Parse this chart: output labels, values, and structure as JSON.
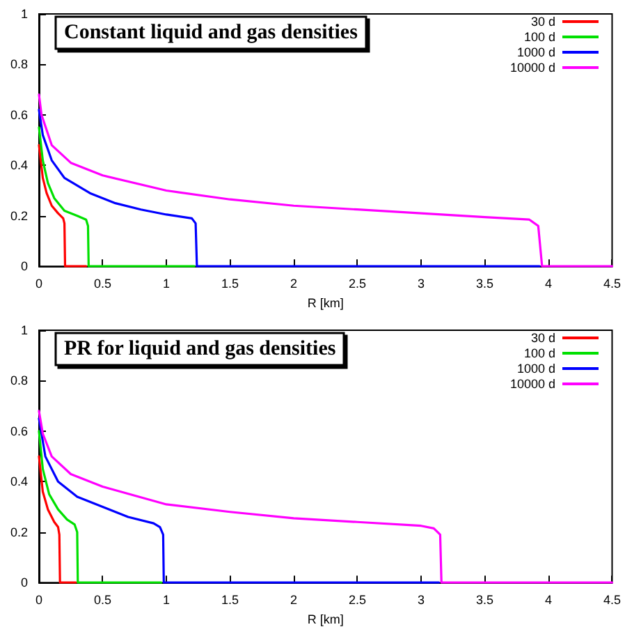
{
  "chart_data": [
    {
      "type": "line",
      "title": "Constant liquid and gas densities",
      "xlabel": "R [km]",
      "xlim": [
        0,
        4.5
      ],
      "xticks": [
        0,
        0.5,
        1,
        1.5,
        2,
        2.5,
        3,
        3.5,
        4,
        4.5
      ],
      "ylim": [
        0,
        1
      ],
      "yticks": [
        0,
        0.2,
        0.4,
        0.6,
        0.8,
        1
      ],
      "grid": false,
      "legend": "top right",
      "marker": "none",
      "line_style": "solid",
      "series": [
        {
          "name": "30 d",
          "color": "#ff0000",
          "x": [
            0,
            0.03,
            0.06,
            0.1,
            0.15,
            0.19,
            0.2,
            0.205,
            0.37
          ],
          "values": [
            0.48,
            0.35,
            0.29,
            0.24,
            0.21,
            0.19,
            0.17,
            0,
            0
          ]
        },
        {
          "name": "100 d",
          "color": "#00e000",
          "x": [
            0,
            0.03,
            0.07,
            0.12,
            0.2,
            0.3,
            0.37,
            0.385,
            0.39,
            1.22
          ],
          "values": [
            0.55,
            0.42,
            0.33,
            0.27,
            0.22,
            0.2,
            0.185,
            0.16,
            0,
            0
          ]
        },
        {
          "name": "1000 d",
          "color": "#0000ff",
          "x": [
            0,
            0.03,
            0.1,
            0.2,
            0.4,
            0.6,
            0.8,
            1,
            1.2,
            1.23,
            1.24,
            3.93
          ],
          "values": [
            0.62,
            0.52,
            0.42,
            0.35,
            0.29,
            0.25,
            0.225,
            0.205,
            0.19,
            0.17,
            0,
            0
          ]
        },
        {
          "name": "10000 d",
          "color": "#ff00ff",
          "x": [
            0,
            0.02,
            0.1,
            0.25,
            0.5,
            1,
            1.5,
            2,
            2.5,
            3,
            3.5,
            3.85,
            3.92,
            3.95,
            4.5
          ],
          "values": [
            0.68,
            0.6,
            0.48,
            0.41,
            0.36,
            0.3,
            0.265,
            0.24,
            0.225,
            0.21,
            0.195,
            0.185,
            0.16,
            0,
            0
          ]
        }
      ]
    },
    {
      "type": "line",
      "title": "PR for liquid and gas densities",
      "xlabel": "R [km]",
      "xlim": [
        0,
        4.5
      ],
      "xticks": [
        0,
        0.5,
        1,
        1.5,
        2,
        2.5,
        3,
        3.5,
        4,
        4.5
      ],
      "ylim": [
        0,
        1
      ],
      "yticks": [
        0,
        0.2,
        0.4,
        0.6,
        0.8,
        1
      ],
      "grid": false,
      "legend": "top right",
      "marker": "none",
      "line_style": "solid",
      "series": [
        {
          "name": "30 d",
          "color": "#ff0000",
          "x": [
            0,
            0.03,
            0.07,
            0.12,
            0.15,
            0.16,
            0.165,
            0.29
          ],
          "values": [
            0.5,
            0.36,
            0.29,
            0.24,
            0.22,
            0.19,
            0,
            0
          ]
        },
        {
          "name": "100 d",
          "color": "#00e000",
          "x": [
            0,
            0.03,
            0.08,
            0.15,
            0.22,
            0.28,
            0.3,
            0.305,
            0.96
          ],
          "values": [
            0.6,
            0.45,
            0.35,
            0.29,
            0.25,
            0.23,
            0.2,
            0,
            0
          ]
        },
        {
          "name": "1000 d",
          "color": "#0000ff",
          "x": [
            0,
            0.05,
            0.15,
            0.3,
            0.5,
            0.7,
            0.9,
            0.95,
            0.975,
            0.98,
            3.14
          ],
          "values": [
            0.65,
            0.5,
            0.4,
            0.34,
            0.3,
            0.26,
            0.235,
            0.22,
            0.19,
            0,
            0
          ]
        },
        {
          "name": "10000 d",
          "color": "#ff00ff",
          "x": [
            0,
            0.03,
            0.1,
            0.25,
            0.5,
            1,
            1.5,
            2,
            2.5,
            3,
            3.1,
            3.15,
            3.16,
            4.5
          ],
          "values": [
            0.68,
            0.59,
            0.5,
            0.43,
            0.38,
            0.31,
            0.28,
            0.255,
            0.24,
            0.225,
            0.215,
            0.19,
            0,
            0
          ]
        }
      ]
    }
  ]
}
